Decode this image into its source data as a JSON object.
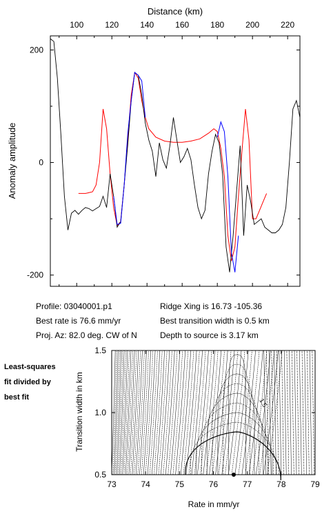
{
  "chart_data": [
    {
      "type": "line",
      "title": "",
      "xlabel": "Distance (km)",
      "ylabel": "Anomaly amplitude",
      "xlim": [
        85,
        227
      ],
      "ylim": [
        -220,
        225
      ],
      "xticks": [
        100,
        120,
        140,
        160,
        180,
        200,
        220
      ],
      "yticks": [
        200,
        0,
        -200
      ],
      "series": [
        {
          "color": "#000000",
          "x": [
            85,
            87,
            89,
            91,
            93,
            95,
            97,
            99,
            101,
            103,
            105,
            107,
            109,
            111,
            113,
            115,
            117,
            119,
            121,
            123,
            125,
            127,
            129,
            131,
            133,
            135,
            137,
            139,
            141,
            143,
            145,
            147,
            149,
            151,
            153,
            155,
            157,
            159,
            161,
            163,
            165,
            167,
            169,
            171,
            173,
            175,
            177,
            179,
            181,
            183,
            185,
            187,
            189,
            191,
            193,
            195,
            197,
            199,
            201,
            203,
            205,
            207,
            209,
            211,
            213,
            215,
            217,
            219,
            221,
            223,
            225,
            227
          ],
          "y": [
            220,
            215,
            150,
            50,
            -60,
            -120,
            -90,
            -85,
            -92,
            -85,
            -80,
            -82,
            -86,
            -82,
            -78,
            -60,
            -80,
            -20,
            -60,
            -115,
            -105,
            -40,
            30,
            110,
            160,
            155,
            120,
            70,
            40,
            20,
            -25,
            35,
            5,
            -10,
            30,
            80,
            40,
            0,
            10,
            25,
            5,
            -40,
            -80,
            -100,
            -85,
            -20,
            20,
            50,
            35,
            -20,
            -150,
            -195,
            -130,
            -50,
            30,
            -130,
            -40,
            -70,
            -110,
            -105,
            -100,
            -115,
            -120,
            -125,
            -125,
            -120,
            -110,
            -80,
            0,
            95,
            110,
            80
          ]
        },
        {
          "color": "#0000ff",
          "x": [
            121,
            123,
            125,
            127,
            129,
            131,
            133,
            135,
            137,
            139
          ],
          "y": [
            -60,
            -110,
            -108,
            -40,
            50,
            110,
            160,
            155,
            145,
            80
          ]
        },
        {
          "color": "#0000ff",
          "x": [
            180,
            182,
            184,
            186,
            188,
            190,
            192
          ],
          "y": [
            45,
            72,
            55,
            -25,
            -160,
            -195,
            -130
          ]
        },
        {
          "color": "#ff0000",
          "x": [
            101,
            105,
            109,
            111,
            113,
            115,
            117,
            119,
            121,
            123,
            125,
            127,
            129,
            131,
            133,
            135,
            137,
            139,
            141,
            145,
            150,
            155,
            160,
            165,
            170,
            175,
            178,
            180,
            182,
            184,
            186,
            188,
            190,
            192,
            194,
            196,
            198,
            200,
            202,
            204,
            206,
            208
          ],
          "y": [
            -55,
            -55,
            -52,
            -40,
            0,
            95,
            60,
            -20,
            -80,
            -112,
            -105,
            -40,
            40,
            120,
            160,
            150,
            110,
            80,
            60,
            45,
            38,
            36,
            36,
            38,
            42,
            52,
            60,
            55,
            25,
            -25,
            -130,
            -175,
            -150,
            -60,
            20,
            95,
            40,
            -100,
            -100,
            -85,
            -70,
            -55
          ]
        }
      ]
    },
    {
      "type": "contour",
      "xlabel": "Rate in mm/yr",
      "ylabel": "Transition width in km",
      "xlim": [
        73,
        79
      ],
      "ylim": [
        0.5,
        1.5
      ],
      "xticks": [
        73,
        74,
        75,
        76,
        77,
        78,
        79
      ],
      "yticks": [
        0.5,
        1.0,
        1.5
      ],
      "contour_label": "1.5",
      "best_fit": {
        "rate": 76.6,
        "width": 0.5
      }
    }
  ],
  "info": {
    "profile": "Profile: 03040001.p1",
    "best_rate": "Best rate is 76.6 mm/yr",
    "proj_az": "Proj. Az: 82.0 deg. CW of N",
    "ridge_xing": "Ridge Xing is 16.73 -105.36",
    "best_width": "Best transition width is 0.5 km",
    "depth": "Depth to source is   3.17 km"
  },
  "side_note": [
    "Least-squares",
    "fit divided by",
    "best fit"
  ]
}
